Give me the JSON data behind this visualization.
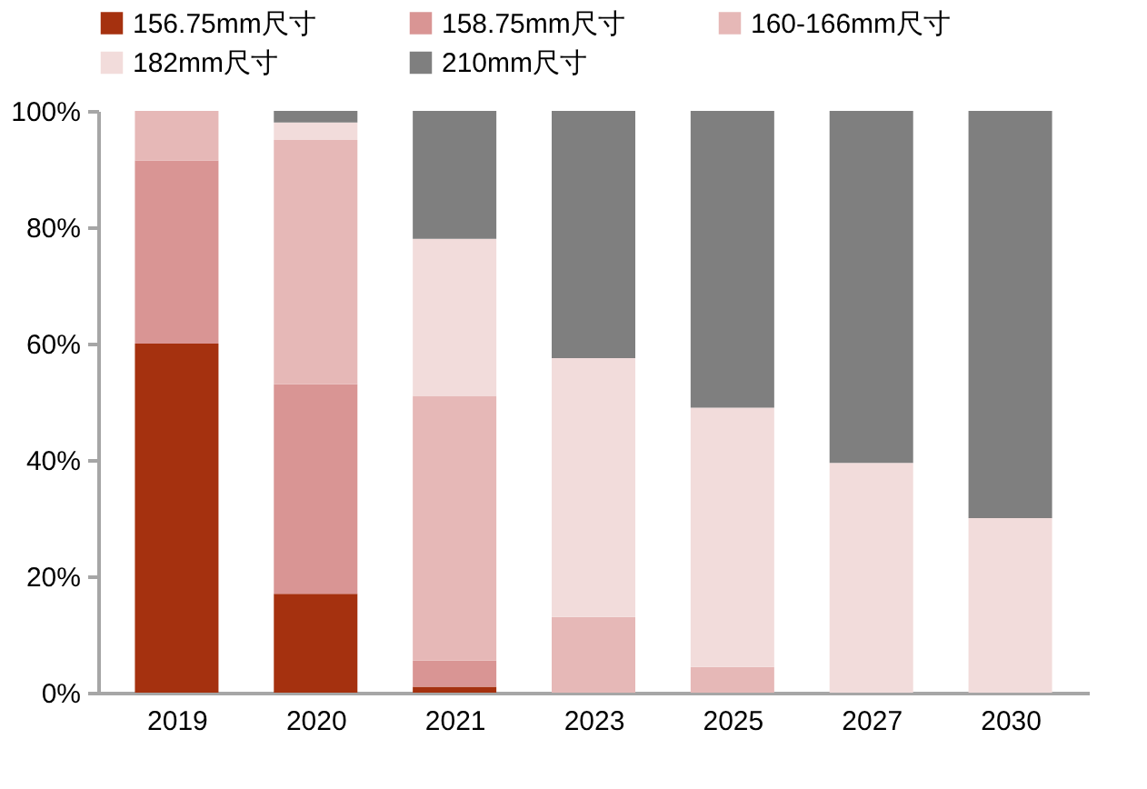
{
  "chart_data": {
    "type": "bar",
    "stacked": true,
    "categories": [
      "2019",
      "2020",
      "2021",
      "2023",
      "2025",
      "2027",
      "2030"
    ],
    "series": [
      {
        "name": "156.75mm尺寸",
        "color": "#a5310f",
        "values": [
          60,
          17,
          1,
          null,
          null,
          null,
          null
        ]
      },
      {
        "name": "158.75mm尺寸",
        "color": "#d99594",
        "values": [
          31.5,
          36,
          4.5,
          null,
          null,
          null,
          null
        ]
      },
      {
        "name": "160-166mm尺寸",
        "color": "#e6b8b7",
        "values": [
          8.5,
          42,
          45.5,
          13,
          4.4,
          null,
          null
        ]
      },
      {
        "name": "182mm尺寸",
        "color": "#f2dcdb",
        "values": [
          null,
          3,
          27,
          44.5,
          44.6,
          39.5,
          30
        ]
      },
      {
        "name": "210mm尺寸",
        "color": "#7f7f7f",
        "values": [
          null,
          2,
          22,
          42.5,
          51,
          60.5,
          70
        ]
      }
    ],
    "ylim": [
      0,
      100
    ],
    "yticks": [
      {
        "value": 0,
        "label": "0%"
      },
      {
        "value": 20,
        "label": "20%"
      },
      {
        "value": 40,
        "label": "40%"
      },
      {
        "value": 60,
        "label": "60%"
      },
      {
        "value": 80,
        "label": "80%"
      },
      {
        "value": 100,
        "label": "100%"
      }
    ],
    "grid": false,
    "legend": "top"
  }
}
